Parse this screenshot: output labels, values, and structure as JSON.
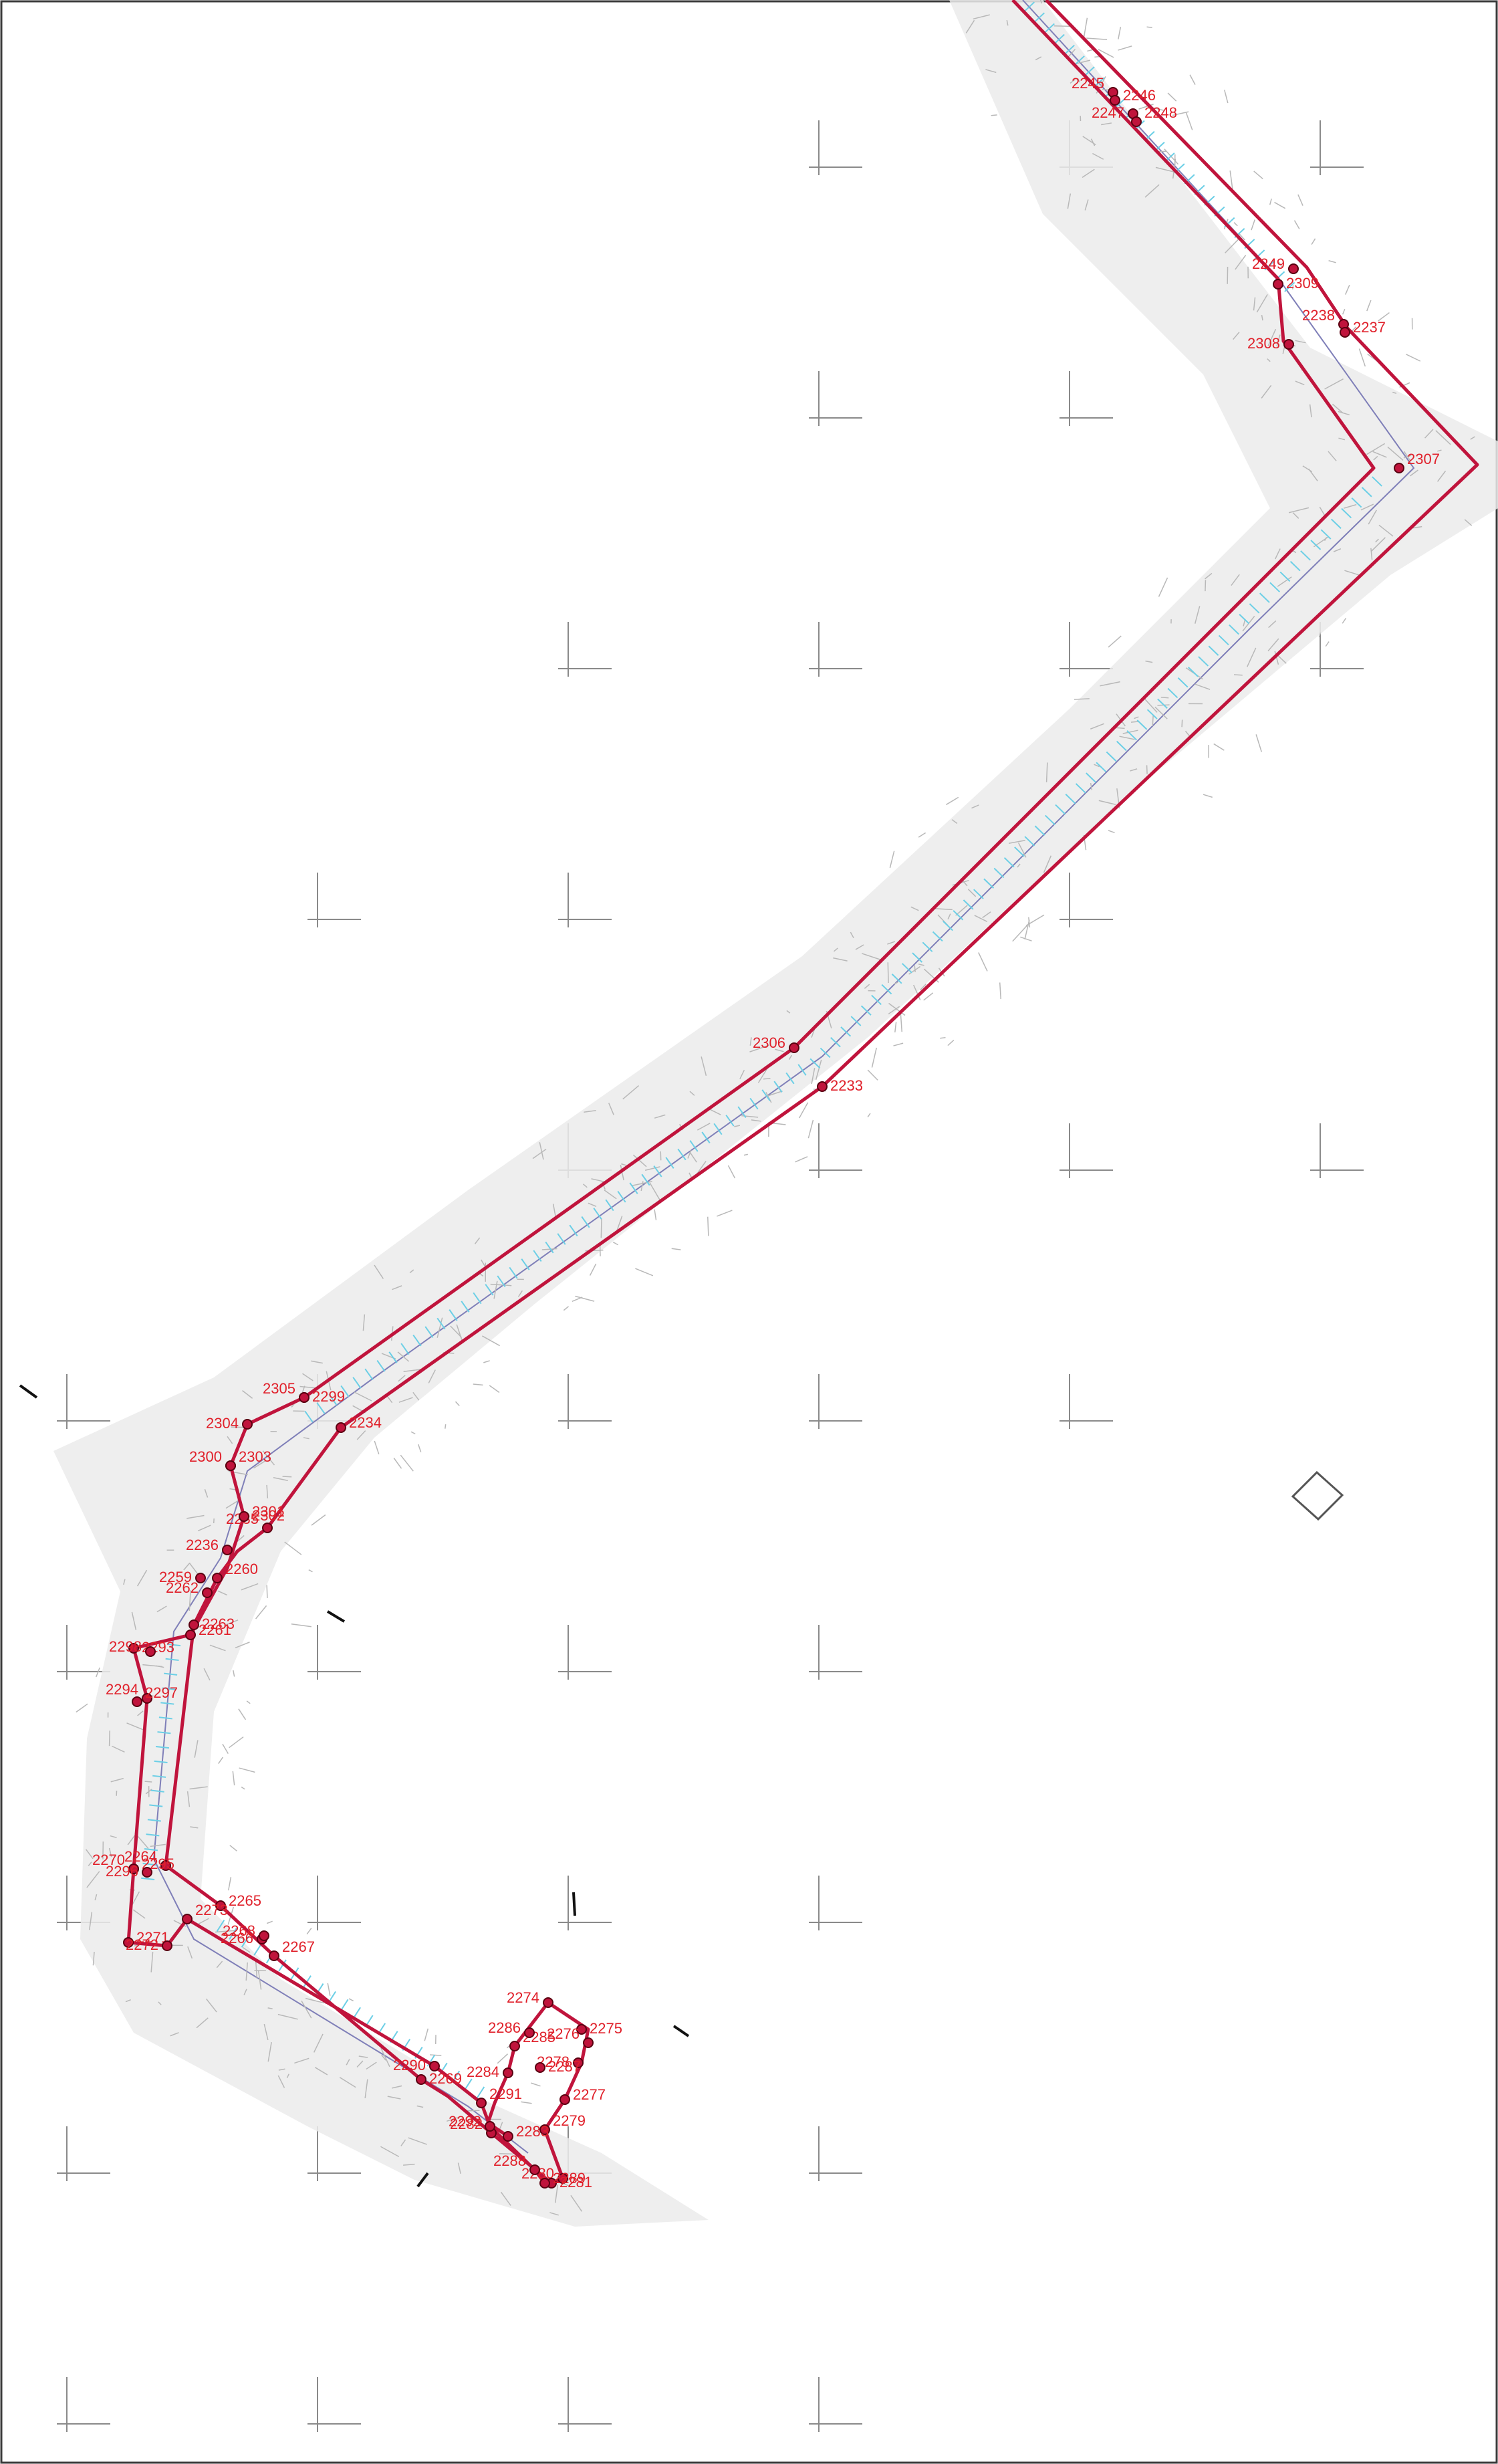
{
  "map": {
    "colors": {
      "boundary": "#c0143c",
      "labels": "#e0202a",
      "axis": "#7f7fb8",
      "ticks": "#6ccfe6",
      "survey": "#b8b8b8",
      "grid": "#8a8a8a"
    },
    "vertex_labels": [
      "2245",
      "2246",
      "2247",
      "2248",
      "2249",
      "2309",
      "2238",
      "2237",
      "2308",
      "2307",
      "2306",
      "2233",
      "2305",
      "2234",
      "2304",
      "2303",
      "2236",
      "2302",
      "2235",
      "2261",
      "2259",
      "2260",
      "2262",
      "2263",
      "2264",
      "2265",
      "2266",
      "2267",
      "2268",
      "2269",
      "2270",
      "2271",
      "2272",
      "2273",
      "2274",
      "2275",
      "2276",
      "2277",
      "2278",
      "2279",
      "2280",
      "2281",
      "2282",
      "2283",
      "2284",
      "2285",
      "2286",
      "2287",
      "2288",
      "2289",
      "2290",
      "2291",
      "2292",
      "2293",
      "2294",
      "2295",
      "2296",
      "2297",
      "2298",
      "2299",
      "2300",
      "2301"
    ],
    "markers": [
      "grid-cross",
      "north-diamond"
    ]
  }
}
